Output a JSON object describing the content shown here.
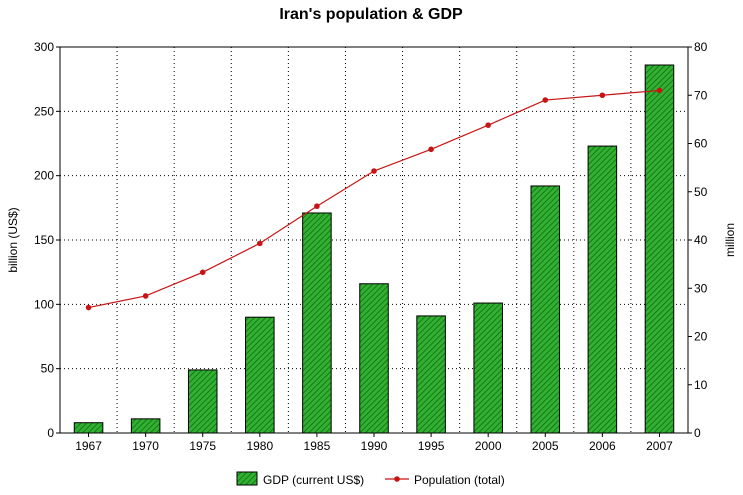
{
  "chart_data": {
    "type": "bar",
    "title": "Iran's population & GDP",
    "categories": [
      "1967",
      "1970",
      "1975",
      "1980",
      "1985",
      "1990",
      "1995",
      "2000",
      "2005",
      "2006",
      "2007"
    ],
    "ylabel": "billion (US$)",
    "ylim": [
      0,
      300
    ],
    "yticks": [
      0,
      50,
      100,
      150,
      200,
      250,
      300
    ],
    "y2label": "million",
    "y2lim": [
      0,
      80
    ],
    "y2ticks": [
      0,
      10,
      20,
      30,
      40,
      50,
      60,
      70,
      80
    ],
    "grid": true,
    "legend_position": "bottom",
    "series": [
      {
        "name": "GDP (current US$)",
        "type": "bar",
        "axis": "left",
        "color": "#1a9a1a",
        "values": [
          8,
          11,
          49,
          90,
          171,
          116,
          91,
          101,
          192,
          223,
          286
        ]
      },
      {
        "name": "Population (total)",
        "type": "line",
        "axis": "right",
        "color": "#c81414",
        "values": [
          26.0,
          28.4,
          33.3,
          39.3,
          47.0,
          54.3,
          58.8,
          63.8,
          69.0,
          70.0,
          71.0
        ]
      }
    ]
  }
}
